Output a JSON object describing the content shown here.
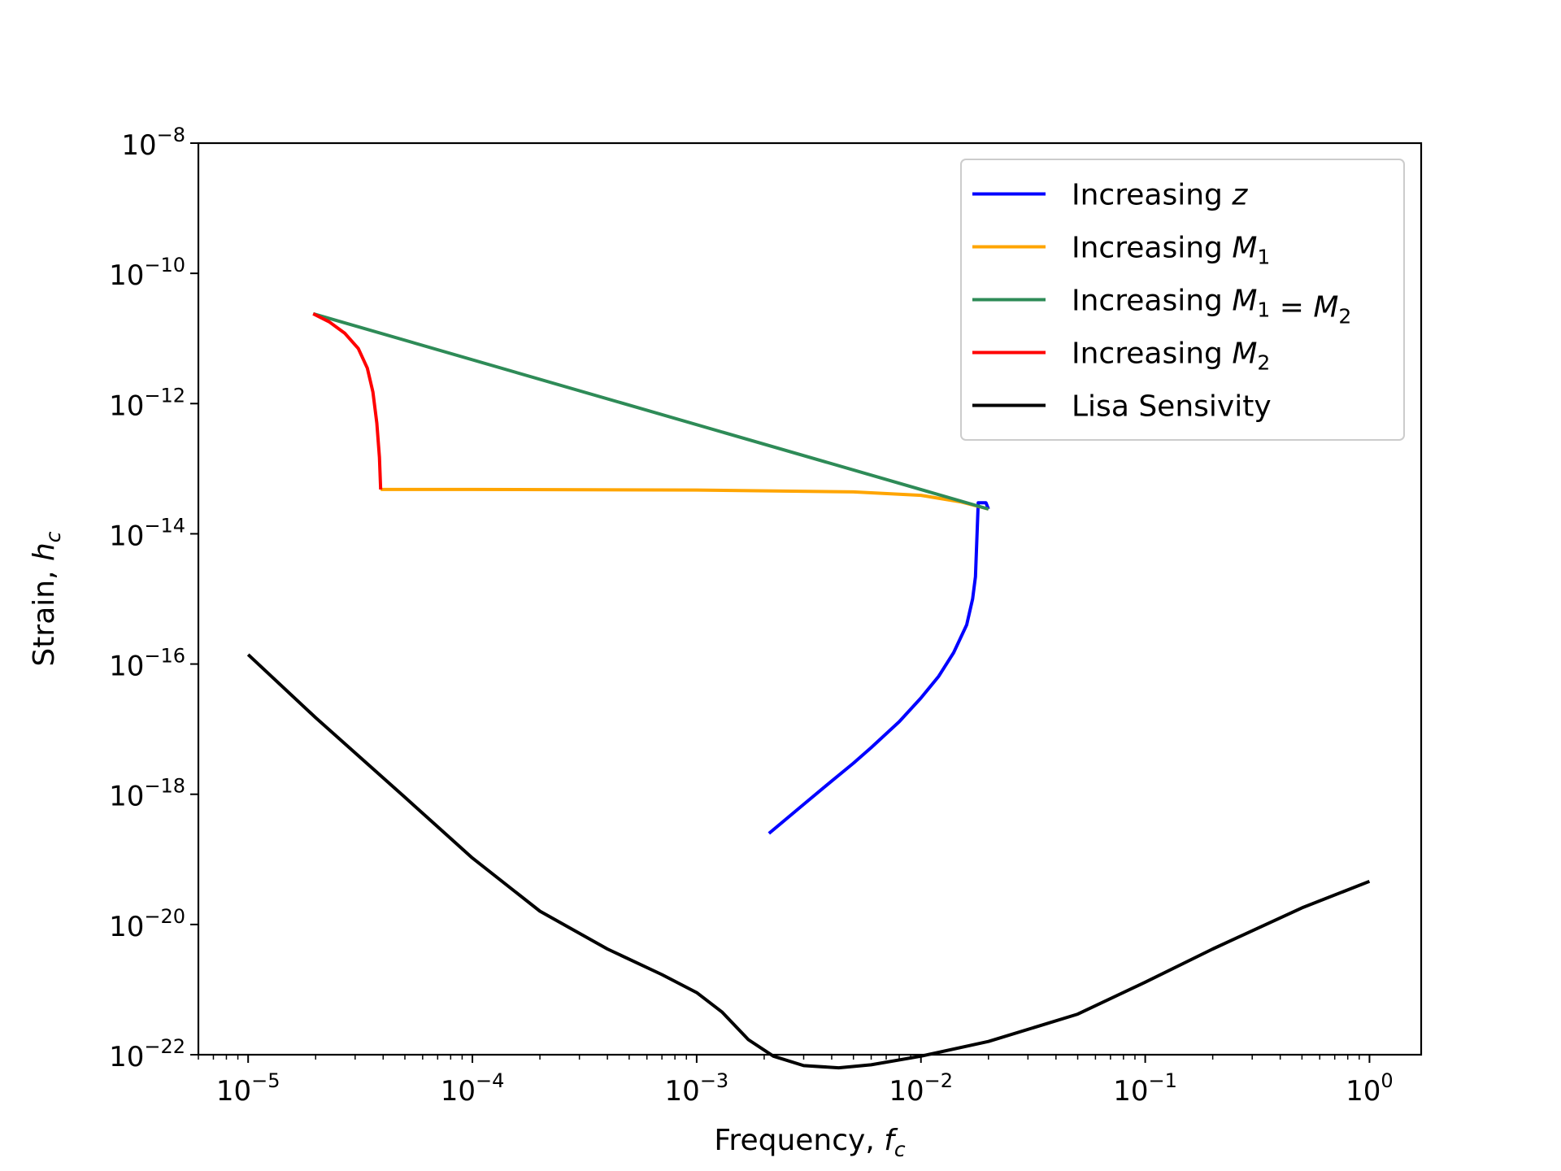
{
  "chart_data": {
    "type": "line",
    "xlabel": {
      "text": "Frequency, ",
      "math": "f",
      "sub": "c"
    },
    "ylabel": {
      "text": "Strain, ",
      "math": "h",
      "sub": "c"
    },
    "xscale": "log",
    "yscale": "log",
    "xlim": [
      6e-06,
      1.7
    ],
    "ylim": [
      1e-22,
      1e-08
    ],
    "x_ticks": [
      {
        "value": 1e-05,
        "base": "10",
        "exp": "−5"
      },
      {
        "value": 0.0001,
        "base": "10",
        "exp": "−4"
      },
      {
        "value": 0.001,
        "base": "10",
        "exp": "−3"
      },
      {
        "value": 0.01,
        "base": "10",
        "exp": "−2"
      },
      {
        "value": 0.1,
        "base": "10",
        "exp": "−1"
      },
      {
        "value": 1,
        "base": "10",
        "exp": "0"
      }
    ],
    "y_ticks": [
      {
        "value": 1e-08,
        "base": "10",
        "exp": "−8"
      },
      {
        "value": 1e-10,
        "base": "10",
        "exp": "−10"
      },
      {
        "value": 1e-12,
        "base": "10",
        "exp": "−12"
      },
      {
        "value": 1e-14,
        "base": "10",
        "exp": "−14"
      },
      {
        "value": 1e-16,
        "base": "10",
        "exp": "−16"
      },
      {
        "value": 1e-18,
        "base": "10",
        "exp": "−18"
      },
      {
        "value": 1e-20,
        "base": "10",
        "exp": "−20"
      },
      {
        "value": 1e-22,
        "base": "10",
        "exp": "−22"
      }
    ],
    "grid": false,
    "legend_position": "top-right",
    "series": [
      {
        "name": "Increasing z",
        "label": {
          "text": "Increasing ",
          "math": [
            {
              "t": "z"
            }
          ]
        },
        "color": "#0000ff",
        "points": [
          [
            0.0021,
            2.5e-19
          ],
          [
            0.003,
            7e-19
          ],
          [
            0.004,
            1.6e-18
          ],
          [
            0.005,
            3e-18
          ],
          [
            0.006,
            5.2e-18
          ],
          [
            0.008,
            1.3e-17
          ],
          [
            0.01,
            3e-17
          ],
          [
            0.012,
            6.5e-17
          ],
          [
            0.014,
            1.5e-16
          ],
          [
            0.016,
            4e-16
          ],
          [
            0.017,
            1e-15
          ],
          [
            0.0175,
            2.2e-15
          ],
          [
            0.018,
            3e-14
          ],
          [
            0.0195,
            3e-14
          ],
          [
            0.02,
            2.4e-14
          ]
        ]
      },
      {
        "name": "Increasing M1",
        "label": {
          "text": "Increasing ",
          "math": [
            {
              "t": "M",
              "sub": "1"
            }
          ]
        },
        "color": "#ffa500",
        "points": [
          [
            3.9e-05,
            4.8e-14
          ],
          [
            0.0001,
            4.8e-14
          ],
          [
            0.001,
            4.7e-14
          ],
          [
            0.005,
            4.4e-14
          ],
          [
            0.01,
            3.9e-14
          ],
          [
            0.015,
            3.1e-14
          ],
          [
            0.02,
            2.4e-14
          ]
        ]
      },
      {
        "name": "Increasing M1 = M2",
        "label": {
          "text": "Increasing ",
          "math": [
            {
              "t": "M",
              "sub": "1"
            },
            {
              "op": " = "
            },
            {
              "t": "M",
              "sub": "2"
            }
          ]
        },
        "color": "#2e8b57",
        "points": [
          [
            1.95e-05,
            2.4e-11
          ],
          [
            0.02,
            2.4e-14
          ]
        ]
      },
      {
        "name": "Increasing M2",
        "label": {
          "text": "Increasing ",
          "math": [
            {
              "t": "M",
              "sub": "2"
            }
          ]
        },
        "color": "#ff0000",
        "points": [
          [
            1.95e-05,
            2.4e-11
          ],
          [
            2.3e-05,
            1.8e-11
          ],
          [
            2.7e-05,
            1.2e-11
          ],
          [
            3.1e-05,
            7e-12
          ],
          [
            3.4e-05,
            3.5e-12
          ],
          [
            3.6e-05,
            1.5e-12
          ],
          [
            3.75e-05,
            5e-13
          ],
          [
            3.85e-05,
            1.5e-13
          ],
          [
            3.9e-05,
            4.8e-14
          ]
        ]
      },
      {
        "name": "Lisa Sensivity",
        "label": {
          "text": "Lisa Sensivity",
          "math": []
        },
        "color": "#000000",
        "points": [
          [
            1e-05,
            1.4e-16
          ],
          [
            2e-05,
            1.5e-17
          ],
          [
            5e-05,
            9e-19
          ],
          [
            0.0001,
            1.05e-19
          ],
          [
            0.0002,
            1.6e-20
          ],
          [
            0.0004,
            4.2e-21
          ],
          [
            0.0007,
            1.7e-21
          ],
          [
            0.001,
            9e-22
          ],
          [
            0.0013,
            4.5e-22
          ],
          [
            0.0017,
            1.7e-22
          ],
          [
            0.0022,
            9.5e-23
          ],
          [
            0.003,
            6.8e-23
          ],
          [
            0.0043,
            6.3e-23
          ],
          [
            0.006,
            7e-23
          ],
          [
            0.01,
            9.5e-23
          ],
          [
            0.02,
            1.6e-22
          ],
          [
            0.05,
            4.2e-22
          ],
          [
            0.1,
            1.3e-21
          ],
          [
            0.2,
            4.2e-21
          ],
          [
            0.5,
            1.8e-20
          ],
          [
            1,
            4.6e-20
          ]
        ]
      }
    ]
  }
}
